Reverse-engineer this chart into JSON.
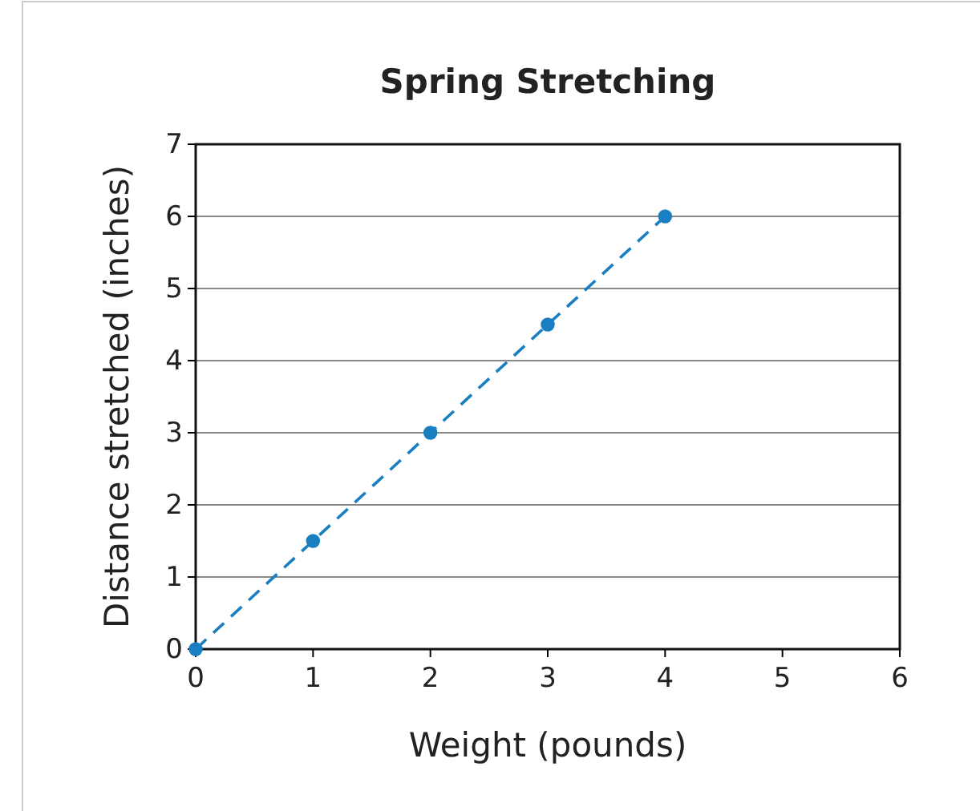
{
  "chart_data": {
    "type": "line",
    "title": "Spring Stretching",
    "xlabel": "Weight (pounds)",
    "ylabel": "Distance stretched (inches)",
    "x": [
      0,
      1,
      2,
      3,
      4
    ],
    "series": [
      {
        "color": "#1a7fc1",
        "values": [
          0,
          1.5,
          3,
          4.5,
          6
        ]
      }
    ],
    "xlim": [
      0,
      6
    ],
    "xticks": [
      0,
      1,
      2,
      3,
      4,
      5,
      6
    ],
    "ylim": [
      0,
      7
    ],
    "yticks": [
      0,
      1,
      2,
      3,
      4,
      5,
      6,
      7
    ],
    "grid": "y",
    "marker": "circle",
    "line_style": "dashed"
  }
}
